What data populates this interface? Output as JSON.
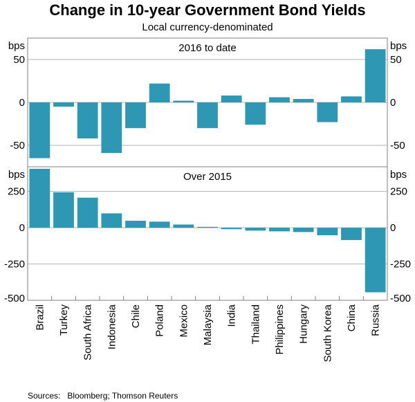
{
  "chart_data": {
    "title": "Change in 10-year Government Bond Yields",
    "subtitle": "Local currency-denominated",
    "source": "Sources:   Bloomberg; Thomson Reuters",
    "categories": [
      "Brazil",
      "Turkey",
      "South Africa",
      "Indonesia",
      "Chile",
      "Poland",
      "Mexico",
      "Malaysia",
      "India",
      "Thailand",
      "Philippines",
      "Hungary",
      "South Korea",
      "China",
      "Russia"
    ],
    "colors": {
      "bar": "#2e97b4",
      "grid": "#b3b3b3",
      "frame": "#808080"
    },
    "panels": [
      {
        "type": "bar",
        "title": "2016 to date",
        "unit_label": "bps",
        "ylim": [
          -75,
          75
        ],
        "ticks": [
          -50,
          0,
          50
        ],
        "tick_labels": [
          "-50",
          "0",
          "50"
        ],
        "values": [
          -65,
          -5,
          -42,
          -59,
          -30,
          22,
          2,
          -30,
          8,
          -26,
          6,
          4,
          -23,
          7,
          62
        ]
      },
      {
        "type": "bar",
        "title": "Over 2015",
        "unit_label": "bps",
        "ylim": [
          -500,
          420
        ],
        "ticks": [
          -500,
          -250,
          0,
          250
        ],
        "tick_labels": [
          "-500",
          "-250",
          "0",
          "250"
        ],
        "values": [
          406,
          244,
          207,
          99,
          48,
          42,
          22,
          6,
          -10,
          -20,
          -25,
          -30,
          -52,
          -85,
          -445
        ]
      }
    ]
  }
}
